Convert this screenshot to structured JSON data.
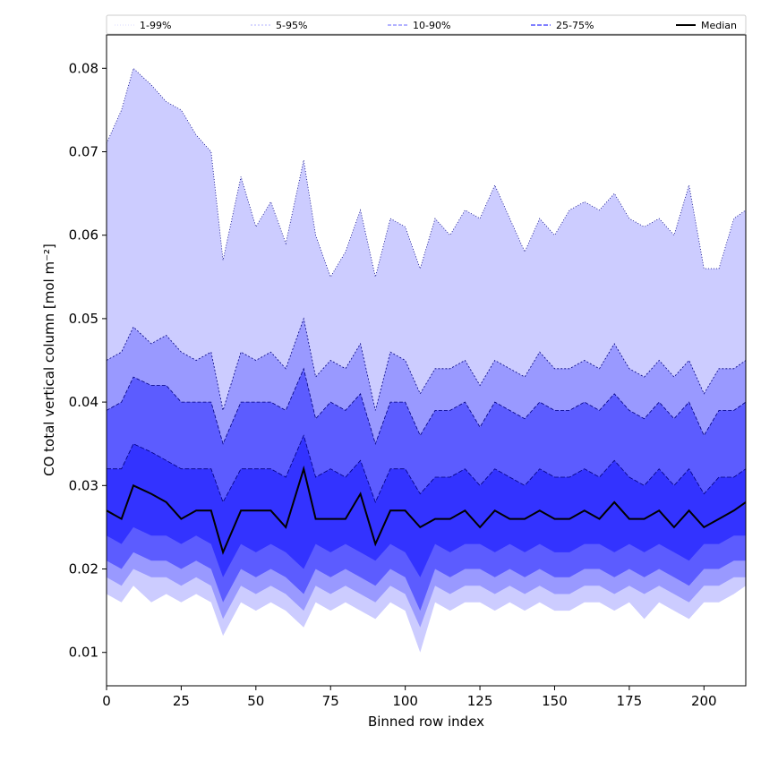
{
  "chart_data": {
    "type": "area",
    "title": "",
    "xlabel": "Binned row index",
    "ylabel": "CO total vertical column [mol m⁻²]",
    "xlim": [
      0,
      214
    ],
    "ylim": [
      0.006,
      0.084
    ],
    "xticks": [
      0,
      25,
      50,
      75,
      100,
      125,
      150,
      175,
      200
    ],
    "yticks": [
      0.01,
      0.02,
      0.03,
      0.04,
      0.05,
      0.06,
      0.07,
      0.08
    ],
    "grid": false,
    "legend_position": "top, spanning full width",
    "legend": [
      "1-99%",
      "5-95%",
      "10-90%",
      "25-75%",
      "Median"
    ],
    "colors": {
      "band_1_99": "#ccccff",
      "band_5_95": "#9999ff",
      "band_10_90": "#5c5cff",
      "band_25_75": "#3333ff",
      "median": "#000000",
      "edge": "#000080"
    },
    "x": [
      0,
      5,
      9,
      15,
      20,
      25,
      30,
      35,
      39,
      45,
      50,
      55,
      60,
      66,
      70,
      75,
      80,
      85,
      90,
      95,
      100,
      105,
      110,
      115,
      120,
      125,
      130,
      135,
      140,
      145,
      150,
      155,
      160,
      165,
      170,
      175,
      180,
      185,
      190,
      195,
      200,
      205,
      210,
      214
    ],
    "series": [
      {
        "name": "1-99%",
        "lower": [
          0.017,
          0.016,
          0.018,
          0.016,
          0.017,
          0.016,
          0.017,
          0.016,
          0.012,
          0.016,
          0.015,
          0.016,
          0.015,
          0.013,
          0.016,
          0.015,
          0.016,
          0.015,
          0.014,
          0.016,
          0.015,
          0.01,
          0.016,
          0.015,
          0.016,
          0.016,
          0.015,
          0.016,
          0.015,
          0.016,
          0.015,
          0.015,
          0.016,
          0.016,
          0.015,
          0.016,
          0.014,
          0.016,
          0.015,
          0.014,
          0.016,
          0.016,
          0.017,
          0.018
        ],
        "upper": [
          0.071,
          0.075,
          0.08,
          0.078,
          0.076,
          0.075,
          0.072,
          0.07,
          0.057,
          0.067,
          0.061,
          0.064,
          0.059,
          0.069,
          0.06,
          0.055,
          0.058,
          0.063,
          0.055,
          0.062,
          0.061,
          0.056,
          0.062,
          0.06,
          0.063,
          0.062,
          0.066,
          0.062,
          0.058,
          0.062,
          0.06,
          0.063,
          0.064,
          0.063,
          0.065,
          0.062,
          0.061,
          0.062,
          0.06,
          0.066,
          0.056,
          0.056,
          0.062,
          0.063
        ]
      },
      {
        "name": "5-95%",
        "lower": [
          0.019,
          0.018,
          0.02,
          0.019,
          0.019,
          0.018,
          0.019,
          0.018,
          0.014,
          0.018,
          0.017,
          0.018,
          0.017,
          0.015,
          0.018,
          0.017,
          0.018,
          0.017,
          0.016,
          0.018,
          0.017,
          0.013,
          0.018,
          0.017,
          0.018,
          0.018,
          0.017,
          0.018,
          0.017,
          0.018,
          0.017,
          0.017,
          0.018,
          0.018,
          0.017,
          0.018,
          0.017,
          0.018,
          0.017,
          0.016,
          0.018,
          0.018,
          0.019,
          0.019
        ],
        "upper": [
          0.045,
          0.046,
          0.049,
          0.047,
          0.048,
          0.046,
          0.045,
          0.046,
          0.039,
          0.046,
          0.045,
          0.046,
          0.044,
          0.05,
          0.043,
          0.045,
          0.044,
          0.047,
          0.039,
          0.046,
          0.045,
          0.041,
          0.044,
          0.044,
          0.045,
          0.042,
          0.045,
          0.044,
          0.043,
          0.046,
          0.044,
          0.044,
          0.045,
          0.044,
          0.047,
          0.044,
          0.043,
          0.045,
          0.043,
          0.045,
          0.041,
          0.044,
          0.044,
          0.045
        ]
      },
      {
        "name": "10-90%",
        "lower": [
          0.021,
          0.02,
          0.022,
          0.021,
          0.021,
          0.02,
          0.021,
          0.02,
          0.016,
          0.02,
          0.019,
          0.02,
          0.019,
          0.017,
          0.02,
          0.019,
          0.02,
          0.019,
          0.018,
          0.02,
          0.019,
          0.015,
          0.02,
          0.019,
          0.02,
          0.02,
          0.019,
          0.02,
          0.019,
          0.02,
          0.019,
          0.019,
          0.02,
          0.02,
          0.019,
          0.02,
          0.019,
          0.02,
          0.019,
          0.018,
          0.02,
          0.02,
          0.021,
          0.021
        ],
        "upper": [
          0.039,
          0.04,
          0.043,
          0.042,
          0.042,
          0.04,
          0.04,
          0.04,
          0.035,
          0.04,
          0.04,
          0.04,
          0.039,
          0.044,
          0.038,
          0.04,
          0.039,
          0.041,
          0.035,
          0.04,
          0.04,
          0.036,
          0.039,
          0.039,
          0.04,
          0.037,
          0.04,
          0.039,
          0.038,
          0.04,
          0.039,
          0.039,
          0.04,
          0.039,
          0.041,
          0.039,
          0.038,
          0.04,
          0.038,
          0.04,
          0.036,
          0.039,
          0.039,
          0.04
        ]
      },
      {
        "name": "25-75%",
        "lower": [
          0.024,
          0.023,
          0.025,
          0.024,
          0.024,
          0.023,
          0.024,
          0.023,
          0.019,
          0.023,
          0.022,
          0.023,
          0.022,
          0.02,
          0.023,
          0.022,
          0.023,
          0.022,
          0.021,
          0.023,
          0.022,
          0.019,
          0.023,
          0.022,
          0.023,
          0.023,
          0.022,
          0.023,
          0.022,
          0.023,
          0.022,
          0.022,
          0.023,
          0.023,
          0.022,
          0.023,
          0.022,
          0.023,
          0.022,
          0.021,
          0.023,
          0.023,
          0.024,
          0.024
        ],
        "upper": [
          0.032,
          0.032,
          0.035,
          0.034,
          0.033,
          0.032,
          0.032,
          0.032,
          0.028,
          0.032,
          0.032,
          0.032,
          0.031,
          0.036,
          0.031,
          0.032,
          0.031,
          0.033,
          0.028,
          0.032,
          0.032,
          0.029,
          0.031,
          0.031,
          0.032,
          0.03,
          0.032,
          0.031,
          0.03,
          0.032,
          0.031,
          0.031,
          0.032,
          0.031,
          0.033,
          0.031,
          0.03,
          0.032,
          0.03,
          0.032,
          0.029,
          0.031,
          0.031,
          0.032
        ]
      },
      {
        "name": "Median",
        "values": [
          0.027,
          0.026,
          0.03,
          0.029,
          0.028,
          0.026,
          0.027,
          0.027,
          0.022,
          0.027,
          0.027,
          0.027,
          0.025,
          0.032,
          0.026,
          0.026,
          0.026,
          0.029,
          0.023,
          0.027,
          0.027,
          0.025,
          0.026,
          0.026,
          0.027,
          0.025,
          0.027,
          0.026,
          0.026,
          0.027,
          0.026,
          0.026,
          0.027,
          0.026,
          0.028,
          0.026,
          0.026,
          0.027,
          0.025,
          0.027,
          0.025,
          0.026,
          0.027,
          0.028
        ]
      }
    ]
  }
}
